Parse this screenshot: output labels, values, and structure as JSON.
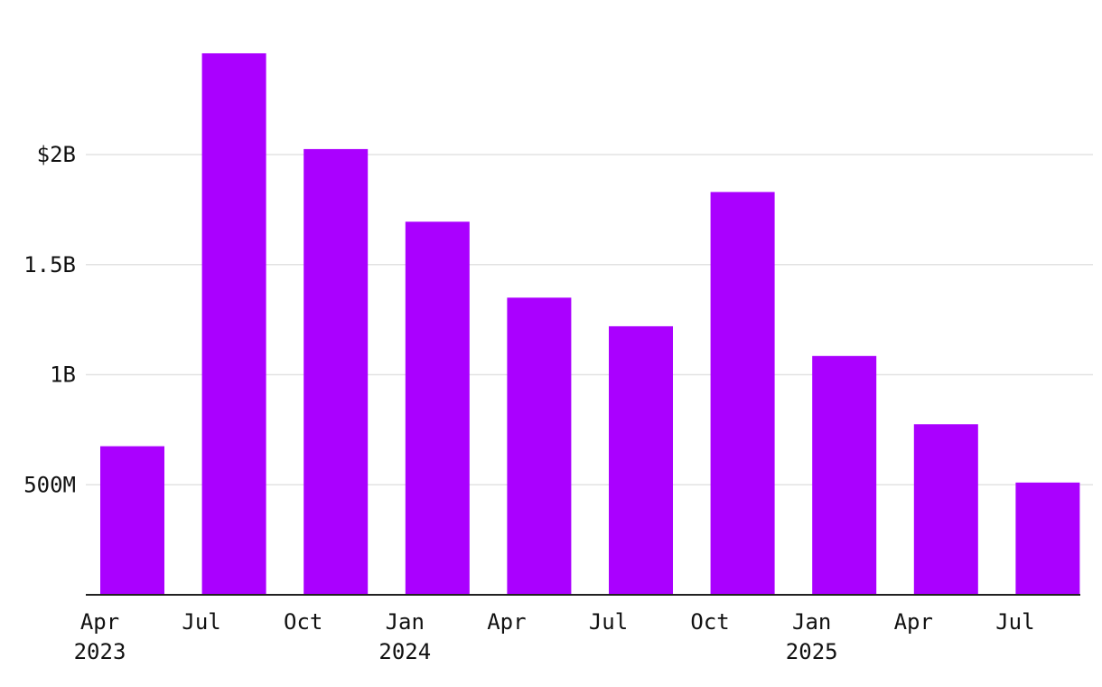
{
  "chart_data": {
    "type": "bar",
    "title": "",
    "xlabel": "",
    "ylabel": "",
    "categories": [
      "Apr 2023",
      "Jul 2023",
      "Oct 2023",
      "Jan 2024",
      "Apr 2024",
      "Jul 2024",
      "Oct 2024",
      "Jan 2025",
      "Apr 2025",
      "Jul 2025"
    ],
    "values": [
      675000000,
      2460000000,
      2025000000,
      1695000000,
      1350000000,
      1220000000,
      1830000000,
      1085000000,
      775000000,
      510000000
    ],
    "ylim": [
      0,
      2700000000
    ],
    "yticks": [
      {
        "value": 500000000,
        "label": "500M"
      },
      {
        "value": 1000000000,
        "label": "1B"
      },
      {
        "value": 1500000000,
        "label": "1.5B"
      },
      {
        "value": 2000000000,
        "label": "$2B"
      }
    ],
    "xtick_labels": [
      {
        "month": "Apr",
        "year": "2023"
      },
      {
        "month": "Jul",
        "year": ""
      },
      {
        "month": "Oct",
        "year": ""
      },
      {
        "month": "Jan",
        "year": "2024"
      },
      {
        "month": "Apr",
        "year": ""
      },
      {
        "month": "Jul",
        "year": ""
      },
      {
        "month": "Oct",
        "year": ""
      },
      {
        "month": "Jan",
        "year": "2025"
      },
      {
        "month": "Apr",
        "year": ""
      },
      {
        "month": "Jul",
        "year": ""
      }
    ],
    "grid": true,
    "colors": {
      "bar": "#aa00ff",
      "grid": "#e3e3e3",
      "axis": "#222222"
    }
  }
}
